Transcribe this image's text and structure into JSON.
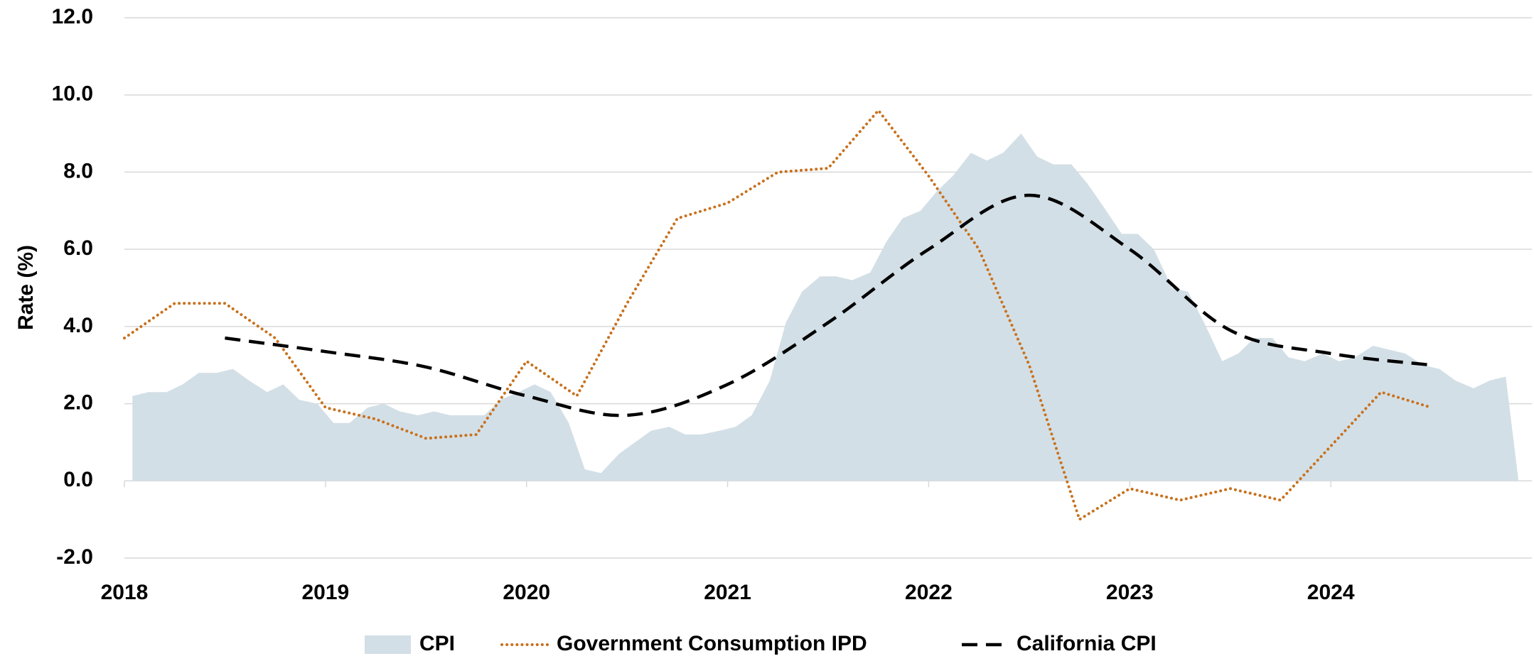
{
  "chart_data": {
    "type": "line",
    "ylabel": "Rate (%)",
    "xlim": [
      2018,
      2025
    ],
    "xticks": [
      2018,
      2019,
      2020,
      2021,
      2022,
      2023,
      2024
    ],
    "ylim": [
      -2,
      12
    ],
    "yticks": [
      {
        "value": -2,
        "label": "-2.0"
      },
      {
        "value": 0,
        "label": "0.0"
      },
      {
        "value": 2,
        "label": "2.0"
      },
      {
        "value": 4,
        "label": "4.0"
      },
      {
        "value": 6,
        "label": "6.0"
      },
      {
        "value": 8,
        "label": "8.0"
      },
      {
        "value": 10,
        "label": "10.0"
      },
      {
        "value": 12,
        "label": "12.0"
      }
    ],
    "grid": true,
    "legend": "bottom",
    "series": [
      {
        "name": "CPI",
        "kind": "area",
        "color": "#d3dfe6",
        "x": [
          2018.04,
          2018.12,
          2018.21,
          2018.29,
          2018.37,
          2018.46,
          2018.54,
          2018.62,
          2018.71,
          2018.79,
          2018.87,
          2018.96,
          2019.04,
          2019.12,
          2019.21,
          2019.29,
          2019.37,
          2019.46,
          2019.54,
          2019.62,
          2019.71,
          2019.79,
          2019.87,
          2019.96,
          2020.04,
          2020.12,
          2020.21,
          2020.29,
          2020.37,
          2020.46,
          2020.54,
          2020.62,
          2020.71,
          2020.79,
          2020.87,
          2020.96,
          2021.04,
          2021.12,
          2021.21,
          2021.29,
          2021.37,
          2021.46,
          2021.54,
          2021.62,
          2021.71,
          2021.79,
          2021.87,
          2021.96,
          2022.04,
          2022.12,
          2022.21,
          2022.29,
          2022.37,
          2022.46,
          2022.54,
          2022.62,
          2022.71,
          2022.79,
          2022.87,
          2022.96,
          2023.04,
          2023.12,
          2023.21,
          2023.29,
          2023.37,
          2023.46,
          2023.54,
          2023.62,
          2023.71,
          2023.79,
          2023.87,
          2023.96,
          2024.04,
          2024.12,
          2024.21,
          2024.29,
          2024.37,
          2024.46,
          2024.54,
          2024.62,
          2024.71,
          2024.79,
          2024.87
        ],
        "values": [
          2.2,
          2.3,
          2.3,
          2.5,
          2.8,
          2.8,
          2.9,
          2.6,
          2.3,
          2.5,
          2.1,
          2.0,
          1.5,
          1.5,
          1.9,
          2.0,
          1.8,
          1.7,
          1.8,
          1.7,
          1.7,
          1.7,
          2.1,
          2.3,
          2.5,
          2.3,
          1.5,
          0.3,
          0.2,
          0.7,
          1.0,
          1.3,
          1.4,
          1.2,
          1.2,
          1.3,
          1.4,
          1.7,
          2.6,
          4.1,
          4.9,
          5.3,
          5.3,
          5.2,
          5.4,
          6.2,
          6.8,
          7.0,
          7.5,
          7.9,
          8.5,
          8.3,
          8.5,
          9.0,
          8.4,
          8.2,
          8.2,
          7.7,
          7.1,
          6.4,
          6.4,
          6.0,
          5.0,
          4.9,
          4.1,
          3.1,
          3.3,
          3.7,
          3.7,
          3.2,
          3.1,
          3.3,
          3.1,
          3.2,
          3.5,
          3.4,
          3.3,
          3.0,
          2.9,
          2.6,
          2.4,
          2.6,
          2.7
        ]
      },
      {
        "name": "Government Consumption IPD",
        "kind": "dotted",
        "color": "#c8711e",
        "x": [
          2018.0,
          2018.25,
          2018.5,
          2018.75,
          2019.0,
          2019.25,
          2019.5,
          2019.75,
          2020.0,
          2020.25,
          2020.5,
          2020.75,
          2021.0,
          2021.25,
          2021.5,
          2021.75,
          2022.0,
          2022.25,
          2022.5,
          2022.75,
          2023.0,
          2023.25,
          2023.5,
          2023.75,
          2024.0,
          2024.25,
          2024.5
        ],
        "values": [
          3.7,
          4.6,
          4.6,
          3.7,
          1.9,
          1.6,
          1.1,
          1.2,
          3.1,
          2.2,
          4.6,
          6.8,
          7.2,
          8.0,
          8.1,
          9.6,
          7.9,
          6.0,
          3.0,
          -1.0,
          -0.2,
          -0.5,
          -0.2,
          -0.5,
          0.9,
          2.3,
          1.9
        ]
      },
      {
        "name": "California CPI",
        "kind": "dashed",
        "color": "#000000",
        "x": [
          2018.5,
          2019.0,
          2019.5,
          2020.0,
          2020.5,
          2021.0,
          2021.5,
          2022.0,
          2022.5,
          2023.0,
          2023.5,
          2024.0,
          2024.5
        ],
        "values": [
          3.7,
          3.35,
          2.95,
          2.2,
          1.7,
          2.5,
          4.1,
          6.0,
          7.4,
          6.0,
          3.9,
          3.3,
          3.0
        ]
      }
    ]
  }
}
